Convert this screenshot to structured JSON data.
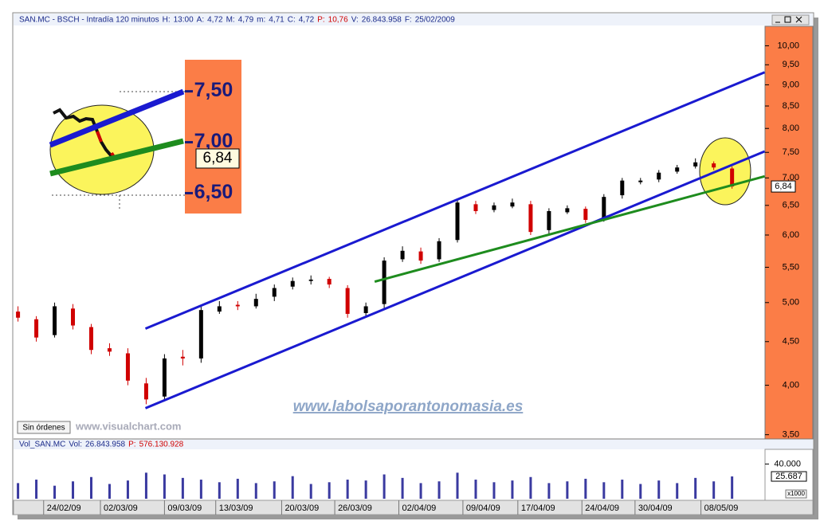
{
  "header": {
    "symbol": "SAN.MC - BSCH - Intradía 120 minutos",
    "fields": [
      {
        "label": "H:",
        "value": "13:00"
      },
      {
        "label": "A:",
        "value": "4,72"
      },
      {
        "label": "M:",
        "value": "4,79"
      },
      {
        "label": "m:",
        "value": "4,71"
      },
      {
        "label": "C:",
        "value": "4,72"
      },
      {
        "label": "P:",
        "value": "10,76"
      },
      {
        "label": "V:",
        "value": "26.843.958"
      },
      {
        "label": "F:",
        "value": "25/02/2009"
      }
    ]
  },
  "status": "Sin órdenes",
  "watermarks": [
    "www.visualchart.com",
    "www.labolsaporantonomasia.es"
  ],
  "chart_data": {
    "type": "candlestick",
    "log_scale": true,
    "open": [
      4.88,
      4.78,
      4.58,
      4.92,
      4.68,
      4.42,
      4.36,
      4.02,
      3.88,
      4.32,
      4.3,
      4.88,
      4.97,
      4.95,
      5.08,
      5.22,
      5.3,
      5.33,
      5.2,
      4.86,
      4.98,
      5.62,
      5.74,
      5.62,
      5.92,
      6.52,
      6.42,
      6.48,
      6.52,
      6.08,
      6.38,
      6.44,
      6.28,
      6.68,
      6.92,
      6.97,
      7.12,
      7.22,
      7.28,
      7.18
    ],
    "high": [
      4.95,
      4.82,
      5.0,
      4.98,
      4.72,
      4.48,
      4.42,
      4.08,
      4.35,
      4.4,
      4.95,
      5.02,
      5.02,
      5.12,
      5.25,
      5.35,
      5.38,
      5.36,
      5.24,
      5.0,
      5.65,
      5.82,
      5.8,
      5.95,
      6.62,
      6.58,
      6.55,
      6.62,
      6.58,
      6.45,
      6.5,
      6.48,
      6.7,
      7.0,
      7.0,
      7.15,
      7.25,
      7.38,
      7.32,
      7.22
    ],
    "low": [
      4.75,
      4.5,
      4.55,
      4.65,
      4.35,
      4.33,
      4.0,
      3.8,
      3.83,
      4.22,
      4.25,
      4.85,
      4.9,
      4.92,
      5.02,
      5.18,
      5.25,
      5.2,
      4.8,
      4.82,
      4.92,
      5.58,
      5.55,
      5.58,
      5.88,
      6.35,
      6.38,
      6.45,
      6.0,
      6.02,
      6.35,
      6.2,
      6.22,
      6.62,
      6.88,
      6.92,
      7.08,
      7.18,
      7.15,
      6.8
    ],
    "close": [
      4.8,
      4.55,
      4.95,
      4.7,
      4.4,
      4.38,
      4.05,
      3.85,
      4.3,
      4.3,
      4.9,
      4.95,
      4.95,
      5.05,
      5.2,
      5.3,
      5.32,
      5.25,
      4.85,
      4.95,
      5.6,
      5.75,
      5.6,
      5.9,
      6.55,
      6.4,
      6.5,
      6.55,
      6.05,
      6.4,
      6.45,
      6.25,
      6.65,
      6.95,
      6.95,
      7.1,
      7.2,
      7.3,
      7.2,
      6.84
    ],
    "up_color": "#000000",
    "down_color": "#d00000",
    "xlim": [
      -0.2,
      40.8
    ],
    "xticks": [
      {
        "value": 1.4,
        "label": "24/02/09"
      },
      {
        "value": 4.5,
        "label": "02/03/09"
      },
      {
        "value": 8,
        "label": "09/03/09"
      },
      {
        "value": 10.8,
        "label": "13/03/09"
      },
      {
        "value": 14.4,
        "label": "20/03/09"
      },
      {
        "value": 17.3,
        "label": "26/03/09"
      },
      {
        "value": 20.8,
        "label": "02/04/09"
      },
      {
        "value": 24.3,
        "label": "09/04/09"
      },
      {
        "value": 27.3,
        "label": "17/04/09"
      },
      {
        "value": 30.8,
        "label": "24/04/09"
      },
      {
        "value": 33.7,
        "label": "30/04/09"
      },
      {
        "value": 37.3,
        "label": "08/05/09"
      }
    ],
    "ylim": [
      3.46,
      10.54
    ],
    "yticks": [
      {
        "value": 10,
        "label": "10,00"
      },
      {
        "value": 9.5,
        "label": "9,50"
      },
      {
        "value": 9,
        "label": "9,00"
      },
      {
        "value": 8.5,
        "label": "8,50"
      },
      {
        "value": 8,
        "label": "8,00"
      },
      {
        "value": 7.5,
        "label": "7,50"
      },
      {
        "value": 7,
        "label": "7,00"
      },
      {
        "value": 6.5,
        "label": "6,50"
      },
      {
        "value": 6,
        "label": "6,00"
      },
      {
        "value": 5.5,
        "label": "5,50"
      },
      {
        "value": 5,
        "label": "5,00"
      },
      {
        "value": 4.5,
        "label": "4,50"
      },
      {
        "value": 4,
        "label": "4,00"
      },
      {
        "value": 3.5,
        "label": "3,50"
      }
    ],
    "last_price": {
      "value": 6.84,
      "label": "6,84"
    },
    "trendlines": [
      {
        "color": "#1a1ad0",
        "x": [
          6.96,
          40.78
        ],
        "y": [
          4.66,
          9.31
        ]
      },
      {
        "color": "#1a1ad0",
        "x": [
          6.96,
          40.78
        ],
        "y": [
          3.76,
          7.52
        ]
      },
      {
        "color": "#1e8c1e",
        "x": [
          19.48,
          40.78
        ],
        "y": [
          5.29,
          7.03
        ]
      }
    ],
    "volume": {
      "title": "Vol_SAN.MC",
      "fields": [
        {
          "label": "Vol:",
          "value": "26.843.958"
        },
        {
          "label": "P:",
          "value": "576.130.928"
        }
      ],
      "color": "#3a3aa0",
      "values": [
        18,
        22,
        15,
        20,
        25,
        17,
        21,
        30,
        28,
        24,
        22,
        19,
        23,
        18,
        20,
        26,
        17,
        19,
        22,
        21,
        28,
        24,
        18,
        20,
        30,
        22,
        19,
        21,
        25,
        18,
        20,
        23,
        19,
        22,
        17,
        21,
        18,
        24,
        20,
        25.687
      ],
      "ylim": [
        0,
        56
      ],
      "yticks": [
        {
          "value": 40,
          "label": "40.000"
        }
      ],
      "last": {
        "value": 25.687,
        "label": "25.687"
      },
      "unit": "x1000"
    },
    "inset": {
      "ylim": [
        6.3,
        7.81
      ],
      "yticks": [
        {
          "value": 7.5,
          "label": "7,50"
        },
        {
          "value": 7,
          "label": "7,00"
        },
        {
          "value": 6.5,
          "label": "6,50"
        }
      ],
      "last": {
        "value": 6.84,
        "label": "6,84"
      }
    }
  }
}
